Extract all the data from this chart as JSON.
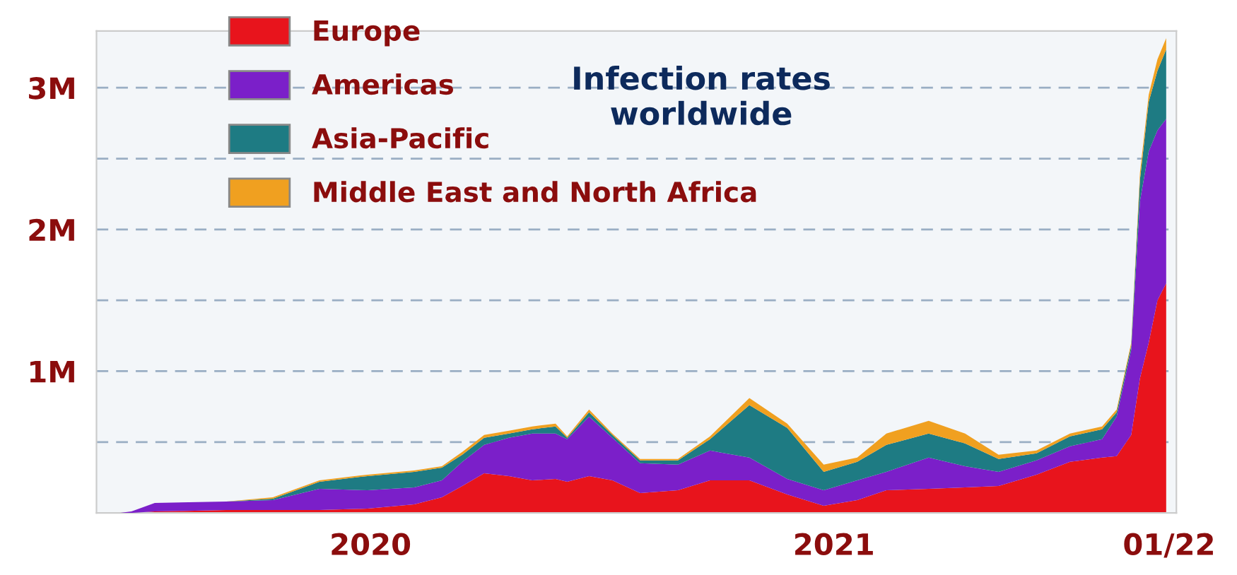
{
  "chart_data": {
    "type": "area",
    "stacked": true,
    "title": "Infection rates\nworldwide",
    "x": [
      "2020-01-20",
      "2020-01-28",
      "2020-02-13",
      "2020-04-02",
      "2020-05-04",
      "2020-06-05",
      "2020-07-08",
      "2020-08-09",
      "2020-08-28",
      "2020-09-11",
      "2020-09-26",
      "2020-10-13",
      "2020-10-29",
      "2020-11-14",
      "2020-11-22",
      "2020-12-07",
      "2020-12-23",
      "2021-01-11",
      "2021-02-06",
      "2021-02-28",
      "2021-03-27",
      "2021-04-22",
      "2021-05-17",
      "2021-06-09",
      "2021-06-29",
      "2021-07-28",
      "2021-08-22",
      "2021-09-14",
      "2021-10-10",
      "2021-11-02",
      "2021-11-24",
      "2021-12-04",
      "2021-12-14",
      "2021-12-20",
      "2021-12-26",
      "2022-01-01",
      "2022-01-07"
    ],
    "series": [
      {
        "name": "Europe",
        "color": "#e8141c",
        "values": [
          0,
          0,
          10000,
          20000,
          20000,
          20000,
          30000,
          60000,
          110000,
          190000,
          280000,
          260000,
          230000,
          240000,
          220000,
          260000,
          230000,
          140000,
          160000,
          230000,
          230000,
          130000,
          50000,
          90000,
          160000,
          170000,
          180000,
          190000,
          270000,
          360000,
          390000,
          400000,
          550000,
          950000,
          1200000,
          1500000,
          1620000
        ]
      },
      {
        "name": "Americas",
        "color": "#7b1fc9",
        "values": [
          0,
          10000,
          60000,
          60000,
          70000,
          150000,
          130000,
          120000,
          120000,
          170000,
          200000,
          270000,
          330000,
          320000,
          300000,
          420000,
          300000,
          210000,
          180000,
          210000,
          160000,
          110000,
          110000,
          140000,
          130000,
          220000,
          150000,
          100000,
          100000,
          110000,
          130000,
          280000,
          600000,
          1250000,
          1350000,
          1200000,
          1160000
        ]
      },
      {
        "name": "Asia-Pacific",
        "color": "#1e7b83",
        "values": [
          0,
          0,
          0,
          0,
          10000,
          50000,
          100000,
          110000,
          90000,
          50000,
          50000,
          30000,
          30000,
          50000,
          10000,
          30000,
          20000,
          20000,
          30000,
          80000,
          370000,
          360000,
          130000,
          130000,
          190000,
          170000,
          160000,
          90000,
          50000,
          70000,
          70000,
          30000,
          30000,
          150000,
          350000,
          420000,
          490000
        ]
      },
      {
        "name": "Middle East and North Africa",
        "color": "#f0a020",
        "values": [
          0,
          0,
          0,
          0,
          10000,
          10000,
          10000,
          10000,
          10000,
          20000,
          20000,
          20000,
          20000,
          20000,
          10000,
          20000,
          10000,
          10000,
          10000,
          20000,
          50000,
          30000,
          50000,
          30000,
          80000,
          90000,
          70000,
          30000,
          20000,
          20000,
          20000,
          20000,
          20000,
          50000,
          50000,
          80000,
          80000
        ]
      }
    ],
    "xlim": [
      "2020-01-04",
      "2022-01-14"
    ],
    "xticks": [
      {
        "value": "2020-07-10",
        "label": "2020"
      },
      {
        "value": "2021-05-24",
        "label": "2021"
      },
      {
        "value": "2022-01-09",
        "label": "01/22"
      }
    ],
    "ylim": [
      0,
      3400000
    ],
    "yticks": [
      {
        "value": 500000,
        "label": null
      },
      {
        "value": 1000000,
        "label": "1M"
      },
      {
        "value": 1500000,
        "label": null
      },
      {
        "value": 2000000,
        "label": "2M"
      },
      {
        "value": 2500000,
        "label": null
      },
      {
        "value": 3000000,
        "label": "3M"
      }
    ],
    "grid": "y",
    "legend": "top left"
  }
}
